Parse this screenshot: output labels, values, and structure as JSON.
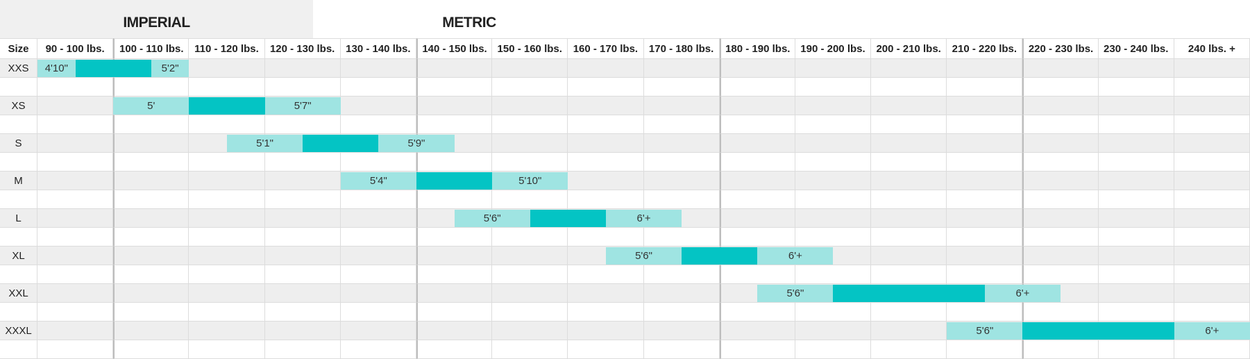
{
  "tabs": [
    "IMPERIAL",
    "METRIC"
  ],
  "table": {
    "size_header": "Size",
    "columns": [
      "90 - 100 lbs.",
      "100 - 110 lbs.",
      "110 - 120 lbs.",
      "120 - 130 lbs.",
      "130 - 140 lbs.",
      "140 - 150 lbs.",
      "150 - 160 lbs.",
      "160 - 170 lbs.",
      "170 - 180 lbs.",
      "180 - 190 lbs.",
      "190 - 200 lbs.",
      "200 - 210 lbs.",
      "210 - 220 lbs.",
      "220 - 230 lbs.",
      "230 - 240 lbs.",
      "240 lbs. +"
    ],
    "rows": [
      {
        "size": "XXS",
        "min_height": "4'10\"",
        "max_height": "5'2\""
      },
      {
        "size": "XS",
        "min_height": "5'",
        "max_height": "5'7\""
      },
      {
        "size": "S",
        "min_height": "5'1\"",
        "max_height": "5'9\""
      },
      {
        "size": "M",
        "min_height": "5'4\"",
        "max_height": "5'10\""
      },
      {
        "size": "L",
        "min_height": "5'6\"",
        "max_height": "6'+"
      },
      {
        "size": "XL",
        "min_height": "5'6\"",
        "max_height": "6'+"
      },
      {
        "size": "XXL",
        "min_height": "5'6\"",
        "max_height": "6'+"
      },
      {
        "size": "XXXL",
        "min_height": "5'6\"",
        "max_height": "6'+"
      }
    ]
  }
}
